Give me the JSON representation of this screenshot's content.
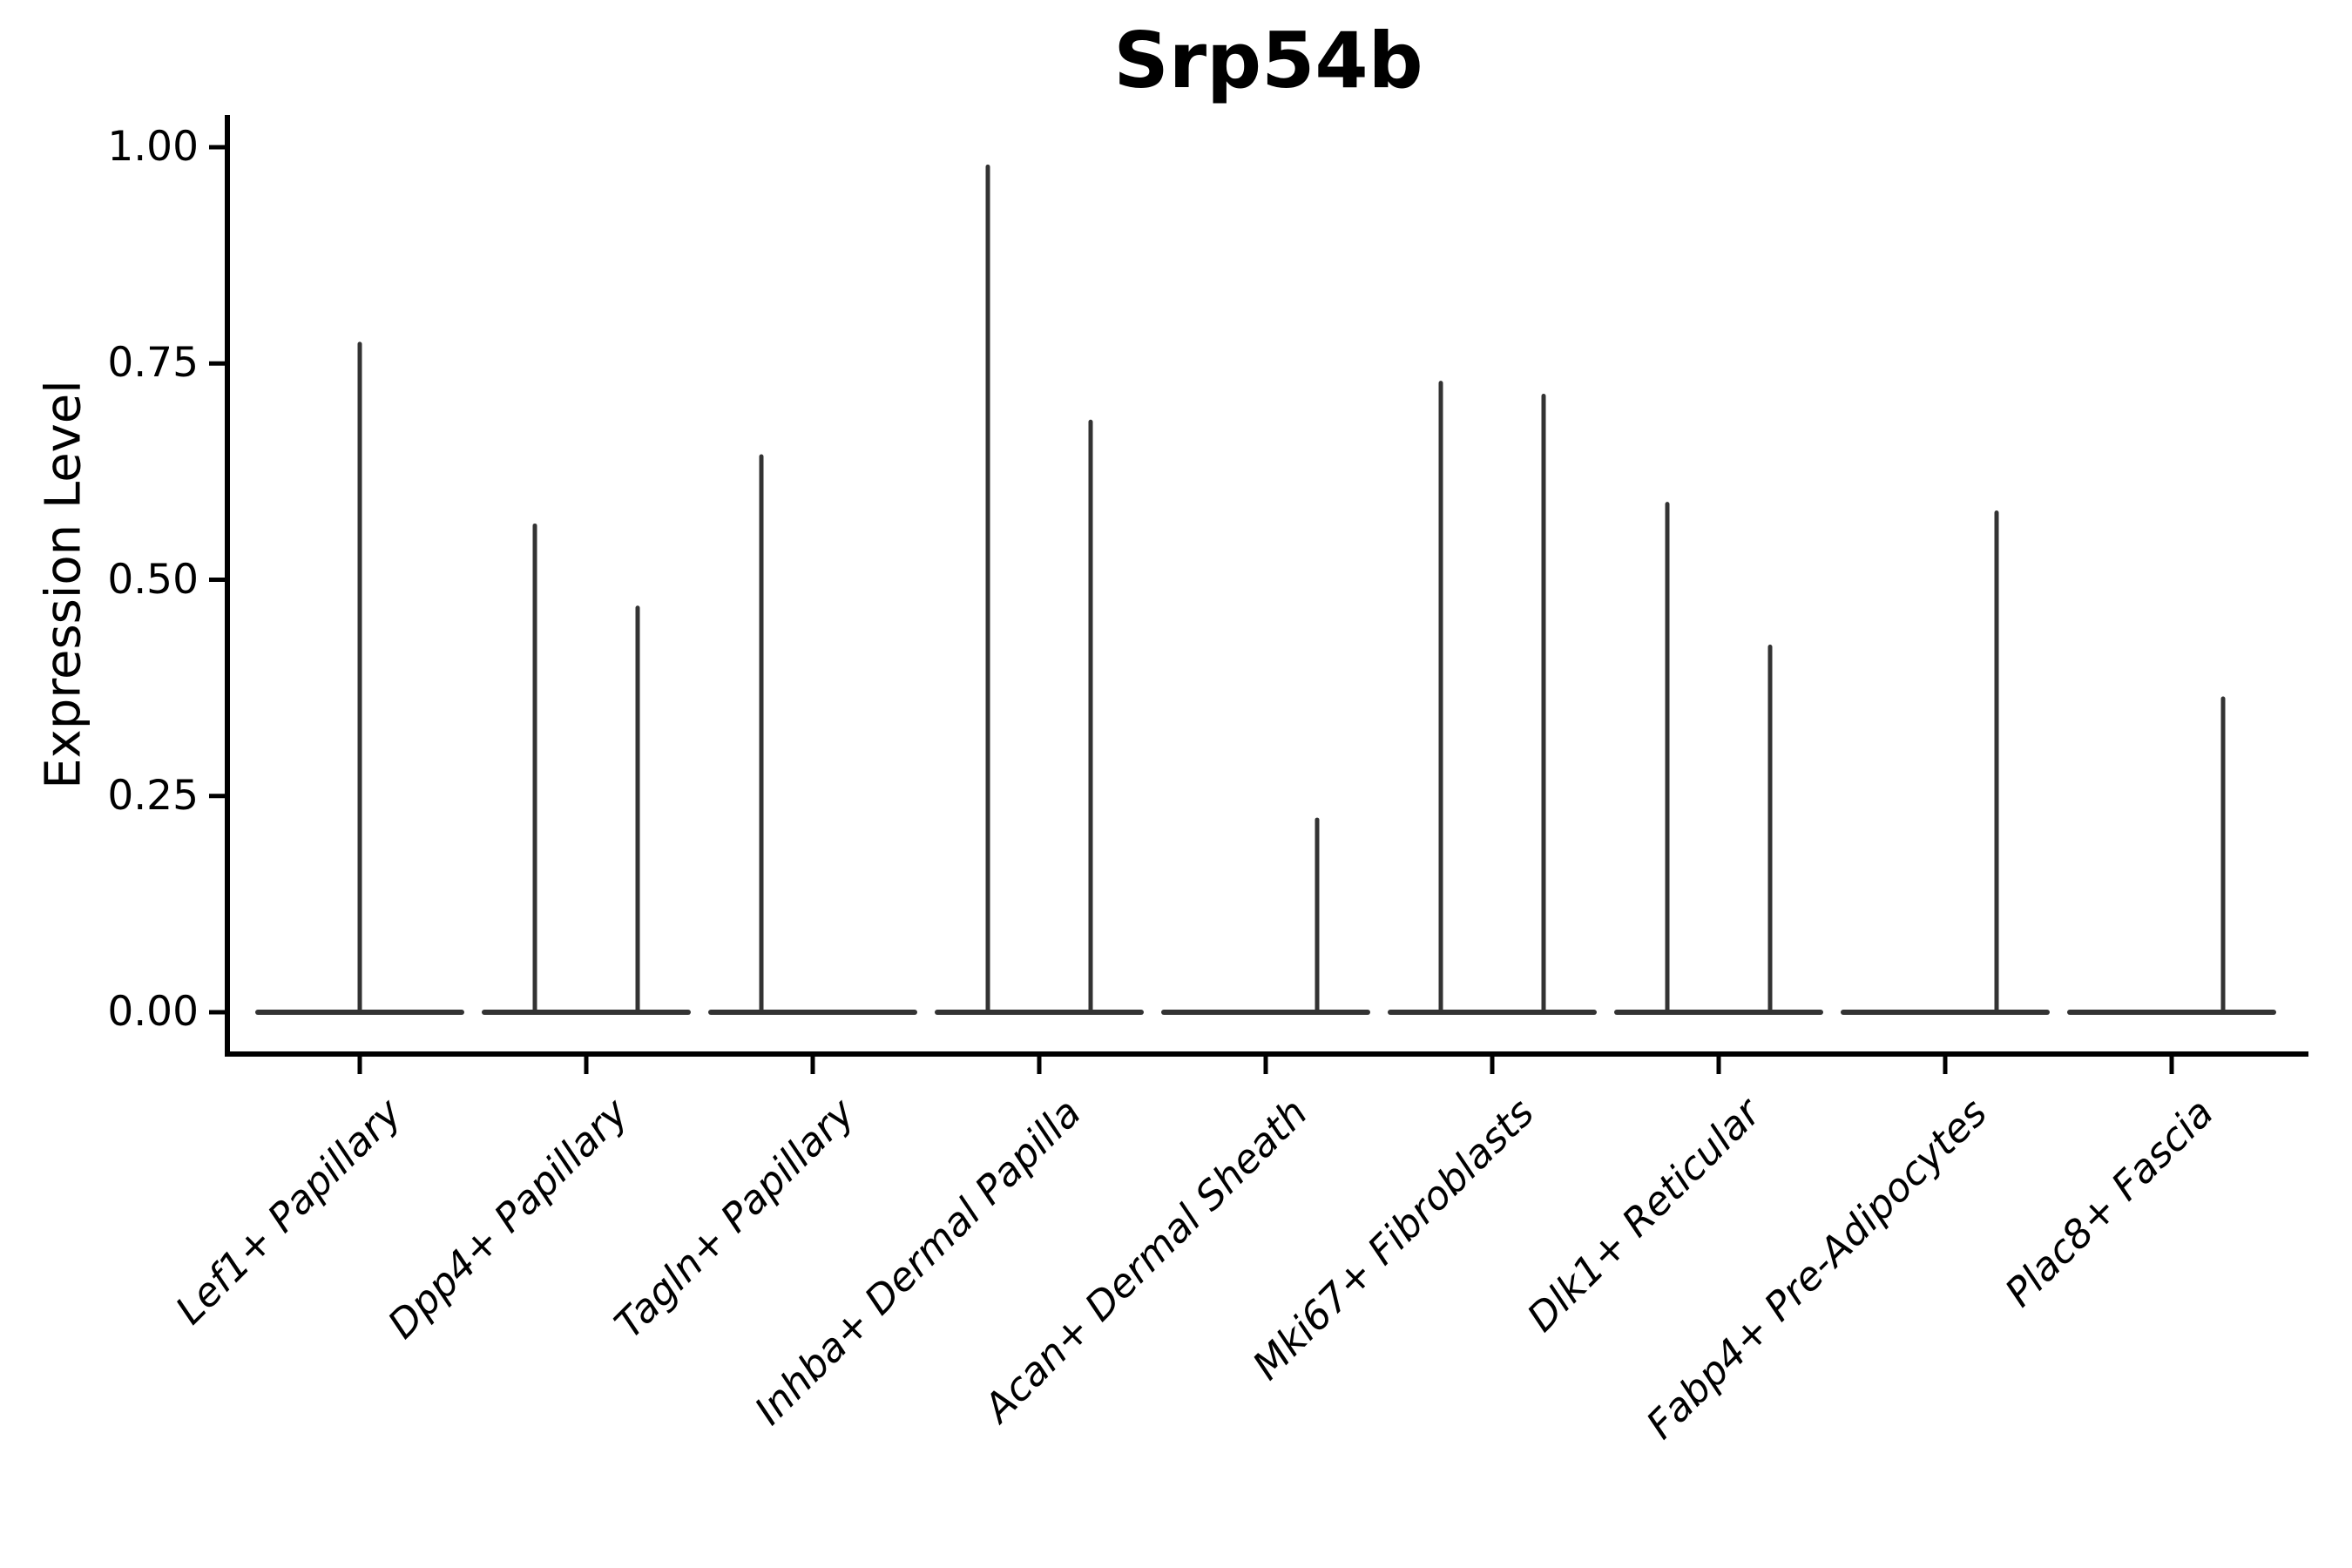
{
  "chart_data": {
    "type": "violin",
    "title": "Srp54b",
    "ylabel": "Expression Level",
    "ylim": [
      0,
      1
    ],
    "grid": false,
    "legend_position": "none",
    "colors": {
      "violin": "#333333",
      "axis": "#000000",
      "background": "#ffffff"
    },
    "yticks": [
      {
        "value": 1.0,
        "label": "1.00"
      },
      {
        "value": 0.75,
        "label": "0.75"
      },
      {
        "value": 0.5,
        "label": "0.50"
      },
      {
        "value": 0.25,
        "label": "0.25"
      },
      {
        "value": 0.0,
        "label": "0.00"
      }
    ],
    "categories": [
      {
        "label": "Lef1+ Papillary",
        "violins": [
          {
            "position": "center",
            "min": 0,
            "max": 0.775
          }
        ]
      },
      {
        "label": "Dpp4+ Papillary",
        "violins": [
          {
            "position": "left",
            "min": 0,
            "max": 0.565
          },
          {
            "position": "right",
            "min": 0,
            "max": 0.47
          }
        ]
      },
      {
        "label": "Tagln+ Papillary",
        "violins": [
          {
            "position": "left",
            "min": 0,
            "max": 0.645
          }
        ]
      },
      {
        "label": "Inhba+ Dermal Papilla",
        "violins": [
          {
            "position": "left",
            "min": 0,
            "max": 0.98
          },
          {
            "position": "right",
            "min": 0,
            "max": 0.685
          }
        ]
      },
      {
        "label": "Acan+ Dermal Sheath",
        "violins": [
          {
            "position": "right",
            "min": 0,
            "max": 0.225
          }
        ]
      },
      {
        "label": "Mki67+ Fibroblasts",
        "violins": [
          {
            "position": "left",
            "min": 0,
            "max": 0.73
          },
          {
            "position": "right",
            "min": 0,
            "max": 0.715
          }
        ]
      },
      {
        "label": "Dlk1+ Reticular",
        "violins": [
          {
            "position": "left",
            "min": 0,
            "max": 0.59
          },
          {
            "position": "right",
            "min": 0,
            "max": 0.425
          }
        ]
      },
      {
        "label": "Fabp4+ Pre-Adipocytes",
        "violins": [
          {
            "position": "right",
            "min": 0,
            "max": 0.58
          }
        ]
      },
      {
        "label": "Plac8+ Fascia",
        "violins": [
          {
            "position": "right",
            "min": 0,
            "max": 0.365
          }
        ]
      }
    ]
  }
}
